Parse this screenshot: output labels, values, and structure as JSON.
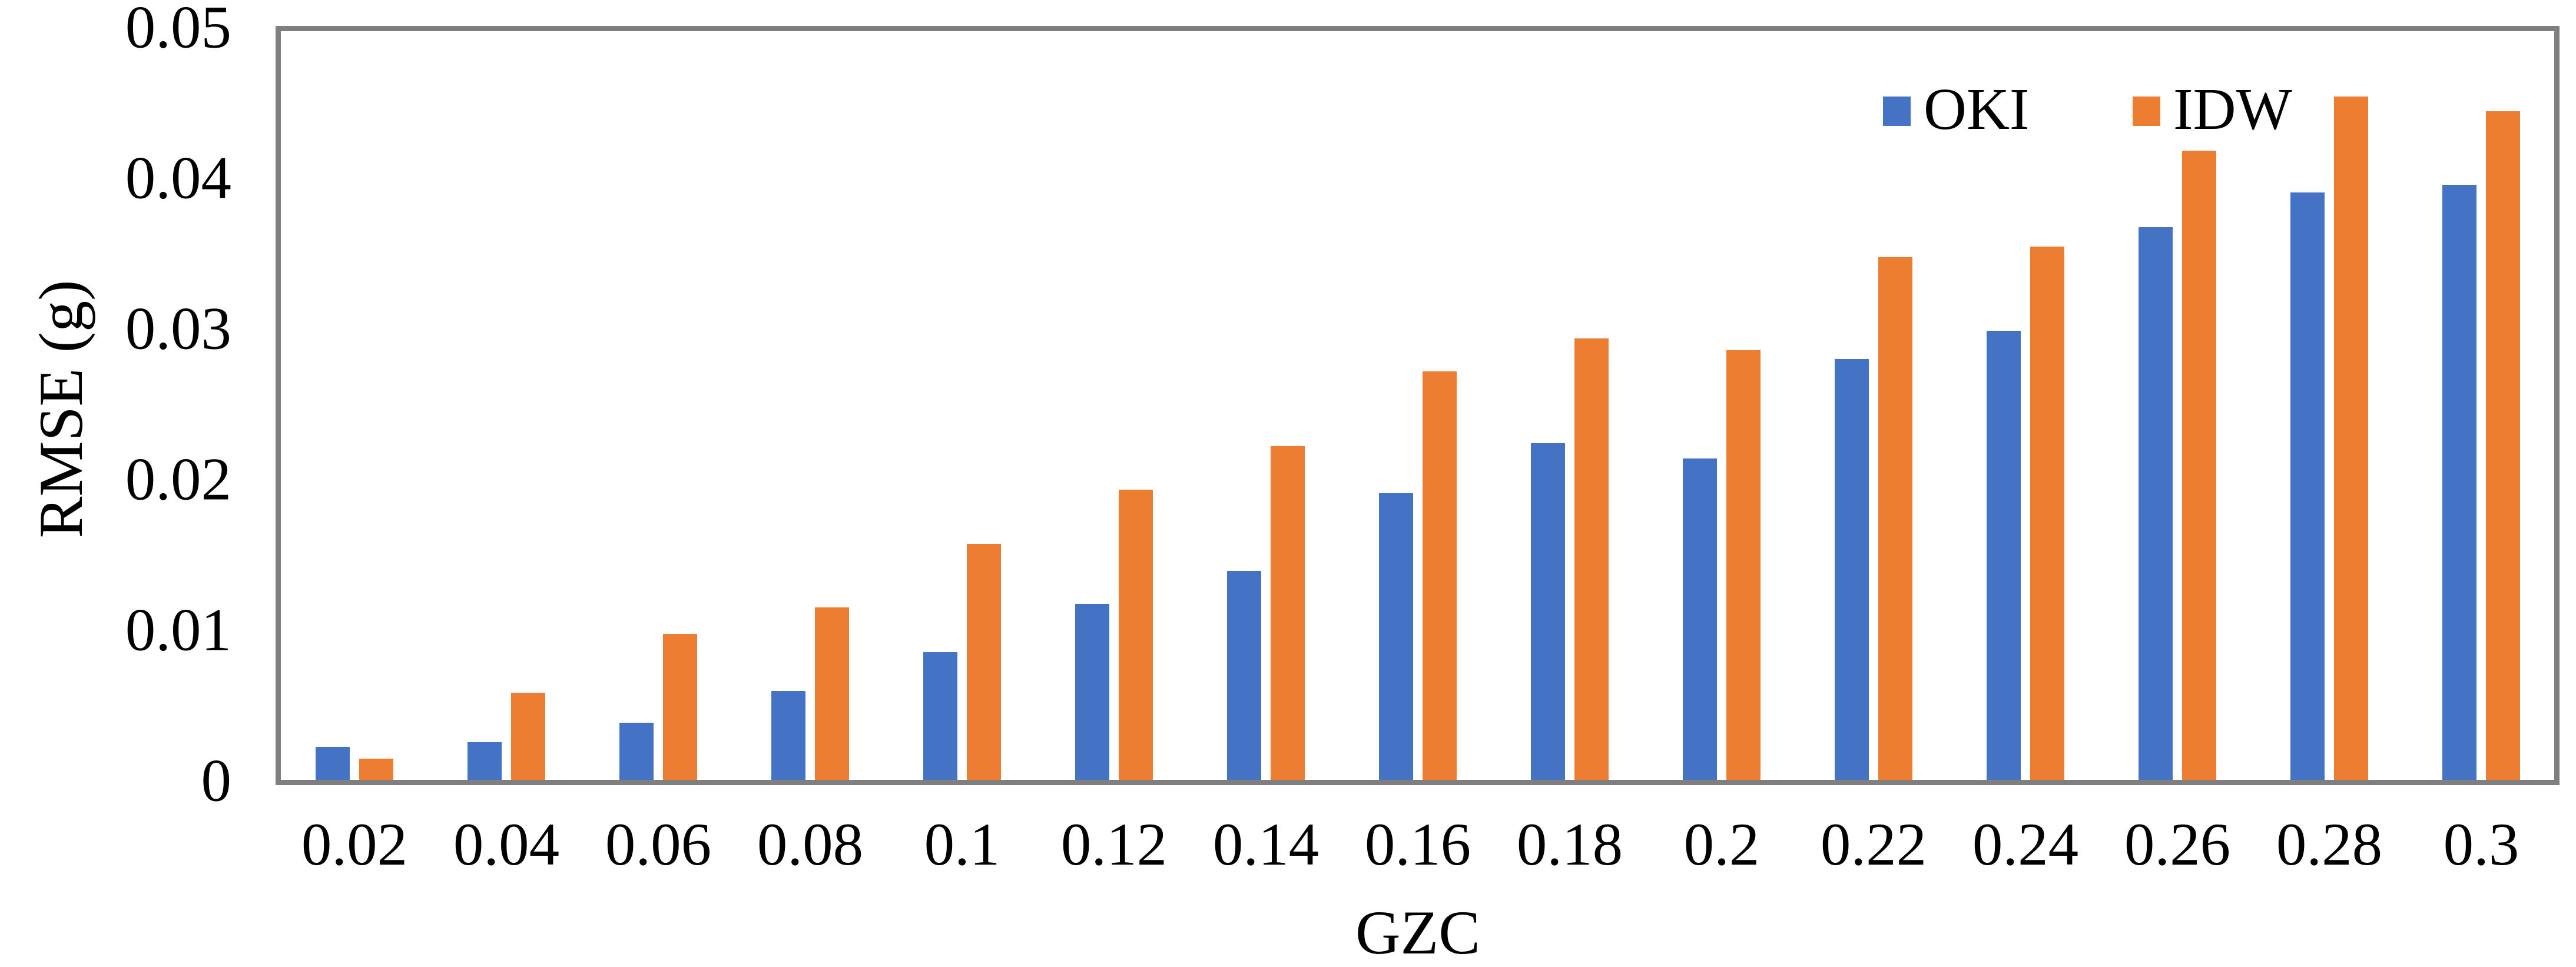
{
  "chart_data": {
    "type": "bar",
    "title": "",
    "xlabel": "GZC",
    "ylabel": "RMSE (g)",
    "categories": [
      "0.02",
      "0.04",
      "0.06",
      "0.08",
      "0.1",
      "0.12",
      "0.14",
      "0.16",
      "0.18",
      "0.2",
      "0.22",
      "0.24",
      "0.26",
      "0.28",
      "0.3"
    ],
    "series": [
      {
        "name": "OKI",
        "color": "#4472C4",
        "values": [
          0.0022,
          0.0025,
          0.0038,
          0.0059,
          0.0085,
          0.0117,
          0.0139,
          0.0191,
          0.0224,
          0.0214,
          0.028,
          0.0299,
          0.0368,
          0.0391,
          0.0396
        ]
      },
      {
        "name": "IDW",
        "color": "#ED7D31",
        "values": [
          0.0014,
          0.0058,
          0.0097,
          0.0115,
          0.0157,
          0.0193,
          0.0222,
          0.0272,
          0.0294,
          0.0286,
          0.0348,
          0.0355,
          0.0419,
          0.0455,
          0.0445
        ]
      }
    ],
    "y_axis": {
      "min": 0,
      "max": 0.05,
      "tick_labels": [
        "0",
        "0.01",
        "0.02",
        "0.03",
        "0.04",
        "0.05"
      ],
      "tick_values": [
        0,
        0.01,
        0.02,
        0.03,
        0.04,
        0.05
      ]
    },
    "ylim": [
      0,
      0.05
    ],
    "grid": false,
    "legend": {
      "position": "top-right-inside",
      "entries": [
        "OKI",
        "IDW"
      ]
    },
    "colors": {
      "plot_border": "#7F7F7F",
      "background": "#FFFFFF",
      "text": "#000000"
    }
  }
}
